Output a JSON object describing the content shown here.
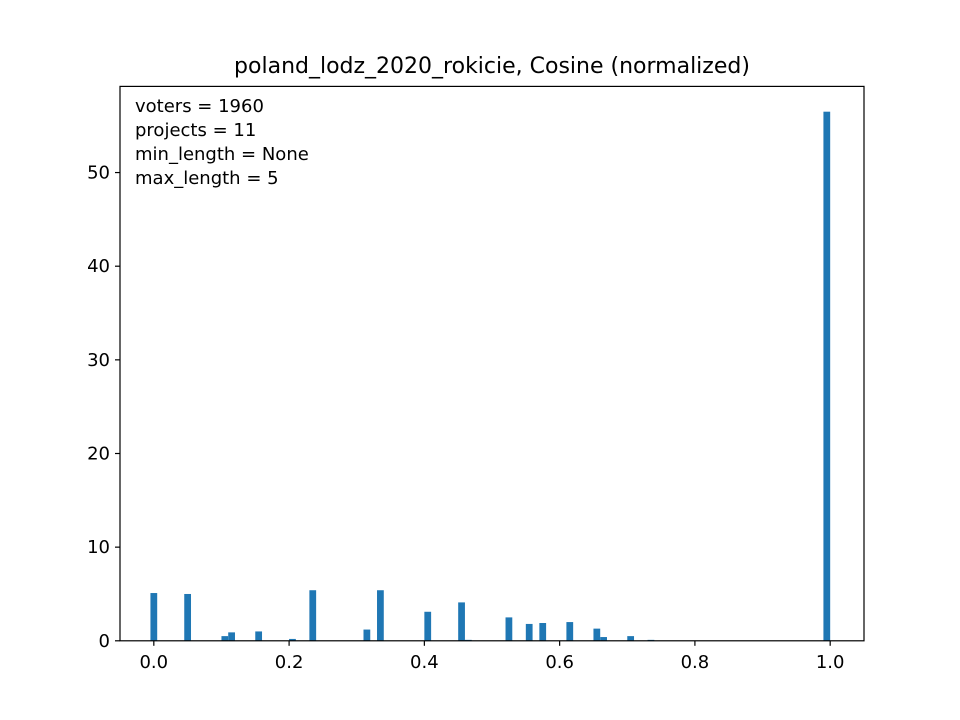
{
  "chart_data": {
    "type": "bar",
    "title": "poland_lodz_2020_rokicie, Cosine (normalized)",
    "xlabel": "",
    "ylabel": "",
    "xlim": [
      -0.05,
      1.05
    ],
    "ylim": [
      0,
      59.2
    ],
    "xticks": [
      0.0,
      0.2,
      0.4,
      0.6,
      0.8,
      1.0
    ],
    "xtick_labels": [
      "0.0",
      "0.2",
      "0.4",
      "0.6",
      "0.8",
      "1.0"
    ],
    "yticks": [
      0,
      10,
      20,
      30,
      40,
      50
    ],
    "ytick_labels": [
      "0",
      "10",
      "20",
      "30",
      "40",
      "50"
    ],
    "bin_width": 0.01,
    "grid": false,
    "bar_color": "#1f77b4",
    "annotations": [
      "voters = 1960",
      "projects = 11",
      "min_length = None",
      "max_length = 5"
    ],
    "bins": [
      {
        "x": 0.0,
        "value": 5.1
      },
      {
        "x": 0.05,
        "value": 5.0
      },
      {
        "x": 0.105,
        "value": 0.5
      },
      {
        "x": 0.115,
        "value": 0.9
      },
      {
        "x": 0.155,
        "value": 1.0
      },
      {
        "x": 0.205,
        "value": 0.2
      },
      {
        "x": 0.235,
        "value": 5.4
      },
      {
        "x": 0.315,
        "value": 1.2
      },
      {
        "x": 0.335,
        "value": 5.4
      },
      {
        "x": 0.405,
        "value": 3.1
      },
      {
        "x": 0.455,
        "value": 4.1
      },
      {
        "x": 0.465,
        "value": 0.1
      },
      {
        "x": 0.525,
        "value": 2.5
      },
      {
        "x": 0.555,
        "value": 1.8
      },
      {
        "x": 0.575,
        "value": 1.9
      },
      {
        "x": 0.615,
        "value": 2.0
      },
      {
        "x": 0.655,
        "value": 1.3
      },
      {
        "x": 0.665,
        "value": 0.4
      },
      {
        "x": 0.705,
        "value": 0.5
      },
      {
        "x": 0.735,
        "value": 0.1
      },
      {
        "x": 0.995,
        "value": 56.5
      }
    ]
  }
}
